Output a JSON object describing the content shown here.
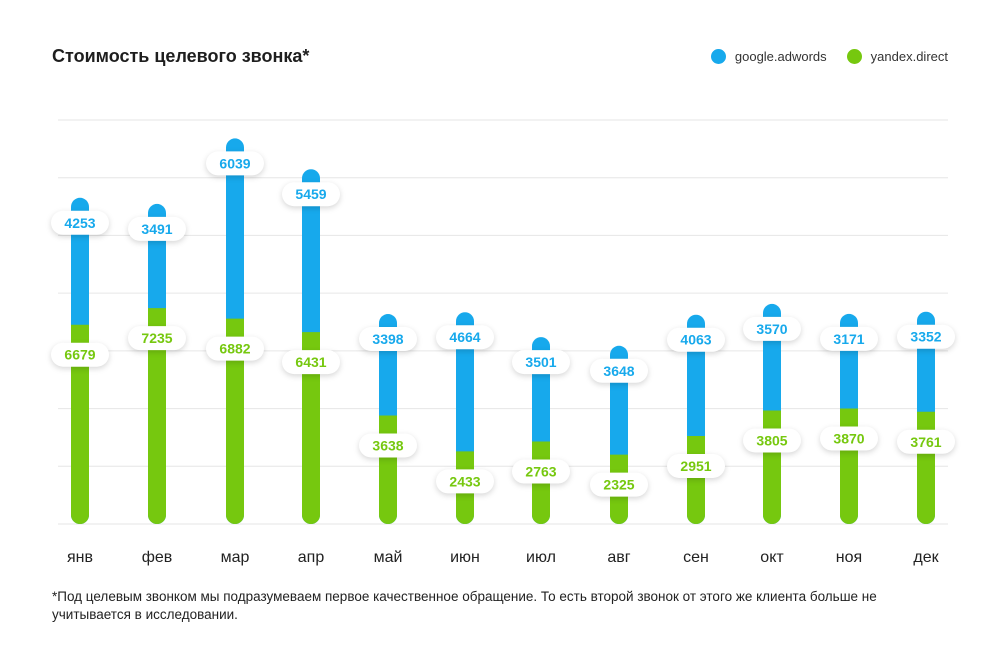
{
  "chart_data": {
    "type": "bar",
    "stacked": true,
    "title": "Стоимость целевого звонка*",
    "categories": [
      "янв",
      "фев",
      "мар",
      "апр",
      "май",
      "июн",
      "июл",
      "авг",
      "сен",
      "окт",
      "ноя",
      "дек"
    ],
    "series": [
      {
        "name": "yandex.direct",
        "color": "#76c80f",
        "values": [
          6679,
          7235,
          6882,
          6431,
          3638,
          2433,
          2763,
          2325,
          2951,
          3805,
          3870,
          3761
        ]
      },
      {
        "name": "google.adwords",
        "color": "#17a9ec",
        "values": [
          4253,
          3491,
          6039,
          5459,
          3398,
          4664,
          3501,
          3648,
          4063,
          3570,
          3171,
          3352
        ]
      }
    ],
    "grid": true,
    "legend_position": "top-right"
  },
  "footnote": "*Под целевым звонком мы подразумеваем первое качественное обращение. То есть второй звонок от этого же клиента больше не учитывается в исследовании."
}
